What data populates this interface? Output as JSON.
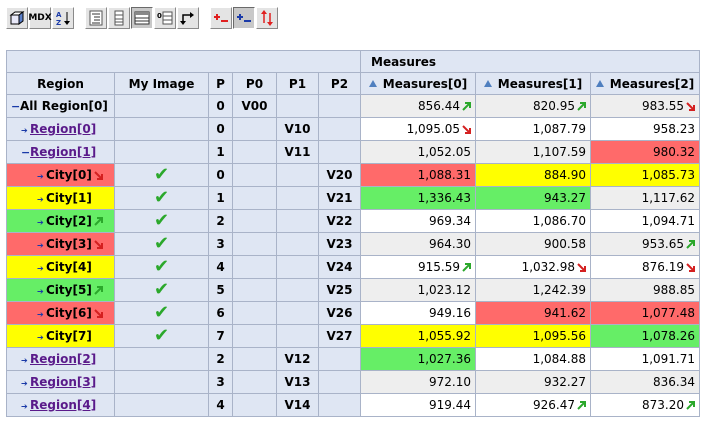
{
  "toolbar": {
    "mdx_label": "MDX"
  },
  "table": {
    "measures_header": "Measures",
    "headers": {
      "region": "Region",
      "image": "My Image",
      "p": "P",
      "p0": "P0",
      "p1": "P1",
      "p2": "P2",
      "m0": "Measures[0]",
      "m1": "Measures[1]",
      "m2": "Measures[2]"
    },
    "rows": [
      {
        "type": "all",
        "name": "All Region[0]",
        "p": "0",
        "p0": "V00",
        "p1": "",
        "p2": "",
        "check": false,
        "name_arrow": "",
        "m": [
          {
            "v": "856.44",
            "c": "grey",
            "a": "up"
          },
          {
            "v": "820.95",
            "c": "grey",
            "a": "up"
          },
          {
            "v": "983.55",
            "c": "grey",
            "a": "down"
          }
        ]
      },
      {
        "type": "region",
        "name": "Region[0]",
        "p": "0",
        "p0": "",
        "p1": "V10",
        "p2": "",
        "check": false,
        "expand": "+",
        "name_arrow": "",
        "m": [
          {
            "v": "1,095.05",
            "c": "",
            "a": "down"
          },
          {
            "v": "1,087.79",
            "c": "",
            "a": ""
          },
          {
            "v": "958.23",
            "c": "",
            "a": ""
          }
        ]
      },
      {
        "type": "region",
        "name": "Region[1]",
        "p": "1",
        "p0": "",
        "p1": "V11",
        "p2": "",
        "check": false,
        "expand": "−",
        "name_arrow": "",
        "m": [
          {
            "v": "1,052.05",
            "c": "grey",
            "a": ""
          },
          {
            "v": "1,107.59",
            "c": "grey",
            "a": ""
          },
          {
            "v": "980.32",
            "c": "red",
            "a": ""
          }
        ]
      },
      {
        "type": "city",
        "name": "City[0]",
        "p": "0",
        "p0": "",
        "p1": "",
        "p2": "V20",
        "check": true,
        "bg": "red",
        "name_arrow": "down",
        "m": [
          {
            "v": "1,088.31",
            "c": "red",
            "a": ""
          },
          {
            "v": "884.90",
            "c": "yel",
            "a": ""
          },
          {
            "v": "1,085.73",
            "c": "yel",
            "a": ""
          }
        ]
      },
      {
        "type": "city",
        "name": "City[1]",
        "p": "1",
        "p0": "",
        "p1": "",
        "p2": "V21",
        "check": true,
        "bg": "yel",
        "name_arrow": "",
        "m": [
          {
            "v": "1,336.43",
            "c": "grn",
            "a": ""
          },
          {
            "v": "943.27",
            "c": "grn",
            "a": ""
          },
          {
            "v": "1,117.62",
            "c": "grey",
            "a": ""
          }
        ]
      },
      {
        "type": "city",
        "name": "City[2]",
        "p": "2",
        "p0": "",
        "p1": "",
        "p2": "V22",
        "check": true,
        "bg": "grn",
        "name_arrow": "up",
        "m": [
          {
            "v": "969.34",
            "c": "",
            "a": ""
          },
          {
            "v": "1,086.70",
            "c": "",
            "a": ""
          },
          {
            "v": "1,094.71",
            "c": "",
            "a": ""
          }
        ]
      },
      {
        "type": "city",
        "name": "City[3]",
        "p": "3",
        "p0": "",
        "p1": "",
        "p2": "V23",
        "check": true,
        "bg": "red",
        "name_arrow": "down",
        "m": [
          {
            "v": "964.30",
            "c": "grey",
            "a": ""
          },
          {
            "v": "900.58",
            "c": "grey",
            "a": ""
          },
          {
            "v": "953.65",
            "c": "grey",
            "a": "up"
          }
        ]
      },
      {
        "type": "city",
        "name": "City[4]",
        "p": "4",
        "p0": "",
        "p1": "",
        "p2": "V24",
        "check": true,
        "bg": "yel",
        "name_arrow": "",
        "m": [
          {
            "v": "915.59",
            "c": "",
            "a": "up"
          },
          {
            "v": "1,032.98",
            "c": "",
            "a": "down"
          },
          {
            "v": "876.19",
            "c": "",
            "a": "down"
          }
        ]
      },
      {
        "type": "city",
        "name": "City[5]",
        "p": "5",
        "p0": "",
        "p1": "",
        "p2": "V25",
        "check": true,
        "bg": "grn",
        "name_arrow": "up",
        "m": [
          {
            "v": "1,023.12",
            "c": "grey",
            "a": ""
          },
          {
            "v": "1,242.39",
            "c": "grey",
            "a": ""
          },
          {
            "v": "988.85",
            "c": "grey",
            "a": ""
          }
        ]
      },
      {
        "type": "city",
        "name": "City[6]",
        "p": "6",
        "p0": "",
        "p1": "",
        "p2": "V26",
        "check": true,
        "bg": "red",
        "name_arrow": "down",
        "m": [
          {
            "v": "949.16",
            "c": "",
            "a": ""
          },
          {
            "v": "941.62",
            "c": "red",
            "a": ""
          },
          {
            "v": "1,077.48",
            "c": "red",
            "a": ""
          }
        ]
      },
      {
        "type": "city",
        "name": "City[7]",
        "p": "7",
        "p0": "",
        "p1": "",
        "p2": "V27",
        "check": true,
        "bg": "yel",
        "name_arrow": "",
        "m": [
          {
            "v": "1,055.92",
            "c": "yel",
            "a": ""
          },
          {
            "v": "1,095.56",
            "c": "yel",
            "a": ""
          },
          {
            "v": "1,078.26",
            "c": "grn",
            "a": ""
          }
        ]
      },
      {
        "type": "region",
        "name": "Region[2]",
        "p": "2",
        "p0": "",
        "p1": "V12",
        "p2": "",
        "check": false,
        "expand": "+",
        "name_arrow": "",
        "m": [
          {
            "v": "1,027.36",
            "c": "grn",
            "a": ""
          },
          {
            "v": "1,084.88",
            "c": "",
            "a": ""
          },
          {
            "v": "1,091.71",
            "c": "",
            "a": ""
          }
        ]
      },
      {
        "type": "region",
        "name": "Region[3]",
        "p": "3",
        "p0": "",
        "p1": "V13",
        "p2": "",
        "check": false,
        "expand": "+",
        "name_arrow": "",
        "m": [
          {
            "v": "972.10",
            "c": "grey",
            "a": ""
          },
          {
            "v": "932.27",
            "c": "grey",
            "a": ""
          },
          {
            "v": "836.34",
            "c": "grey",
            "a": ""
          }
        ]
      },
      {
        "type": "region",
        "name": "Region[4]",
        "p": "4",
        "p0": "",
        "p1": "V14",
        "p2": "",
        "check": false,
        "expand": "+",
        "name_arrow": "",
        "m": [
          {
            "v": "919.44",
            "c": "",
            "a": ""
          },
          {
            "v": "926.47",
            "c": "",
            "a": "up"
          },
          {
            "v": "873.20",
            "c": "",
            "a": "up"
          }
        ]
      }
    ]
  },
  "colors": {
    "header_bg": "#dfe6f3",
    "red": "#ff6a6a",
    "yellow": "#ffff00",
    "green": "#66ee66",
    "link": "#5a1a8a",
    "arrow_up": "#2ba82b",
    "arrow_down": "#d42020"
  },
  "icons": {
    "check": "✔",
    "up": "arrow-up-right-icon",
    "down": "arrow-down-right-icon"
  }
}
